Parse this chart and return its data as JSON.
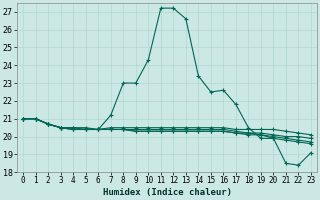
{
  "xlabel": "Humidex (Indice chaleur)",
  "ylabel": "",
  "bg_color": "#cce8e4",
  "grid_color": "#b0d8d0",
  "line_color": "#006655",
  "xlim": [
    -0.5,
    23.5
  ],
  "ylim": [
    18,
    27.5
  ],
  "yticks": [
    18,
    19,
    20,
    21,
    22,
    23,
    24,
    25,
    26,
    27
  ],
  "xticks": [
    0,
    1,
    2,
    3,
    4,
    5,
    6,
    7,
    8,
    9,
    10,
    11,
    12,
    13,
    14,
    15,
    16,
    17,
    18,
    19,
    20,
    21,
    22,
    23
  ],
  "series": [
    [
      21.0,
      21.0,
      20.7,
      20.5,
      20.5,
      20.5,
      20.4,
      21.2,
      23.0,
      23.0,
      24.3,
      27.2,
      27.2,
      26.6,
      23.4,
      22.5,
      22.6,
      21.8,
      20.5,
      19.9,
      19.9,
      18.5,
      18.4,
      19.1
    ],
    [
      21.0,
      21.0,
      20.7,
      20.5,
      20.4,
      20.4,
      20.4,
      20.4,
      20.4,
      20.3,
      20.3,
      20.3,
      20.3,
      20.3,
      20.3,
      20.3,
      20.3,
      20.2,
      20.2,
      20.1,
      20.0,
      19.9,
      19.8,
      19.7
    ],
    [
      21.0,
      21.0,
      20.7,
      20.5,
      20.4,
      20.4,
      20.4,
      20.4,
      20.4,
      20.3,
      20.3,
      20.3,
      20.3,
      20.3,
      20.3,
      20.3,
      20.3,
      20.2,
      20.1,
      20.1,
      19.9,
      19.8,
      19.7,
      19.6
    ],
    [
      21.0,
      21.0,
      20.7,
      20.5,
      20.4,
      20.4,
      20.4,
      20.4,
      20.4,
      20.4,
      20.4,
      20.4,
      20.4,
      20.4,
      20.4,
      20.4,
      20.4,
      20.3,
      20.2,
      20.2,
      20.1,
      20.0,
      20.0,
      19.9
    ],
    [
      21.0,
      21.0,
      20.7,
      20.5,
      20.5,
      20.4,
      20.4,
      20.5,
      20.5,
      20.5,
      20.5,
      20.5,
      20.5,
      20.5,
      20.5,
      20.5,
      20.5,
      20.4,
      20.4,
      20.4,
      20.4,
      20.3,
      20.2,
      20.1
    ]
  ],
  "marker_x": [
    0,
    1,
    2,
    3,
    4,
    5,
    6,
    7,
    8,
    9,
    10,
    11,
    12,
    13,
    14,
    15,
    16,
    17,
    18,
    19,
    20,
    21,
    22,
    23
  ]
}
